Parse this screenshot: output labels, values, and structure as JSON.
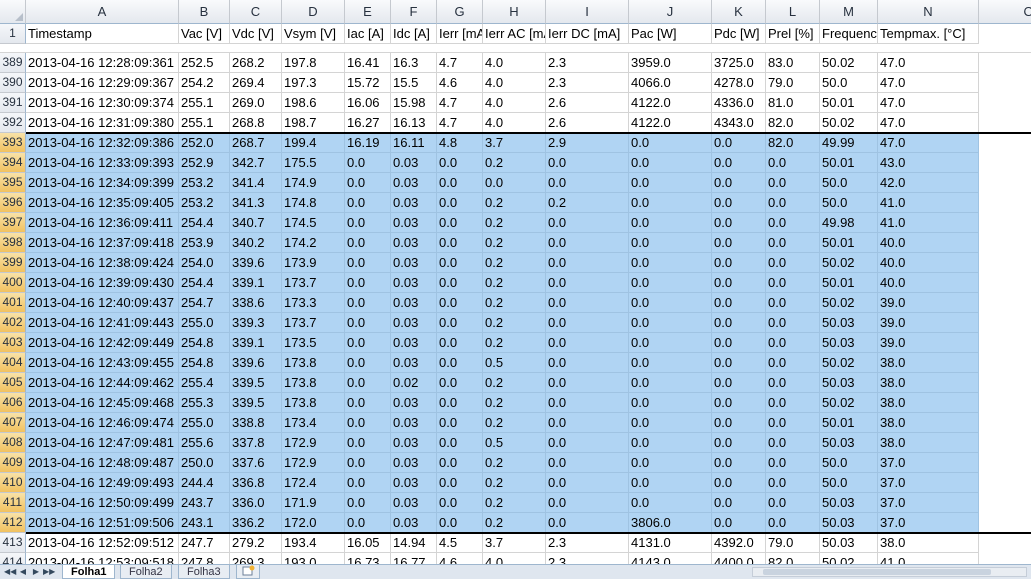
{
  "columns": [
    {
      "letter": "A",
      "w": 153
    },
    {
      "letter": "B",
      "w": 51
    },
    {
      "letter": "C",
      "w": 52
    },
    {
      "letter": "D",
      "w": 63
    },
    {
      "letter": "E",
      "w": 46
    },
    {
      "letter": "F",
      "w": 46
    },
    {
      "letter": "G",
      "w": 46
    },
    {
      "letter": "H",
      "w": 63
    },
    {
      "letter": "I",
      "w": 83
    },
    {
      "letter": "J",
      "w": 83
    },
    {
      "letter": "K",
      "w": 54
    },
    {
      "letter": "L",
      "w": 54
    },
    {
      "letter": "M",
      "w": 58
    },
    {
      "letter": "N",
      "w": 101
    },
    {
      "letter": "O",
      "w": 100
    }
  ],
  "header_row": {
    "num": "1",
    "cells": [
      "Timestamp",
      "Vac [V]",
      "Vdc [V]",
      "Vsym [V]",
      "Iac [A]",
      "Idc [A]",
      "Ierr [mA]",
      "Ierr AC [mA]",
      "Ierr DC [mA]",
      "Pac [W]",
      "Pdc [W]",
      "Prel [%]",
      "Frequency [Hz]",
      "Tempmax. [°C]"
    ]
  },
  "rows": [
    {
      "num": "389",
      "sel": false,
      "cells": [
        "2013-04-16 12:28:09:361",
        "252.5",
        "268.2",
        "197.8",
        "16.41",
        "16.3",
        "4.7",
        "4.0",
        "2.3",
        "3959.0",
        "3725.0",
        "83.0",
        "50.02",
        "47.0"
      ]
    },
    {
      "num": "390",
      "sel": false,
      "cells": [
        "2013-04-16 12:29:09:367",
        "254.2",
        "269.4",
        "197.3",
        "15.72",
        "15.5",
        "4.6",
        "4.0",
        "2.3",
        "4066.0",
        "4278.0",
        "79.0",
        "50.0",
        "47.0"
      ]
    },
    {
      "num": "391",
      "sel": false,
      "cells": [
        "2013-04-16 12:30:09:374",
        "255.1",
        "269.0",
        "198.6",
        "16.06",
        "15.98",
        "4.7",
        "4.0",
        "2.6",
        "4122.0",
        "4336.0",
        "81.0",
        "50.01",
        "47.0"
      ]
    },
    {
      "num": "392",
      "sel": false,
      "cells": [
        "2013-04-16 12:31:09:380",
        "255.1",
        "268.8",
        "198.7",
        "16.27",
        "16.13",
        "4.7",
        "4.0",
        "2.6",
        "4122.0",
        "4343.0",
        "82.0",
        "50.02",
        "47.0"
      ]
    },
    {
      "num": "393",
      "sel": true,
      "cells": [
        "2013-04-16 12:32:09:386",
        "252.0",
        "268.7",
        "199.4",
        "16.19",
        "16.11",
        "4.8",
        "3.7",
        "2.9",
        "0.0",
        "0.0",
        "82.0",
        "49.99",
        "47.0"
      ]
    },
    {
      "num": "394",
      "sel": true,
      "cells": [
        "2013-04-16 12:33:09:393",
        "252.9",
        "342.7",
        "175.5",
        "0.0",
        "0.03",
        "0.0",
        "0.2",
        "0.0",
        "0.0",
        "0.0",
        "0.0",
        "50.01",
        "43.0"
      ]
    },
    {
      "num": "395",
      "sel": true,
      "cells": [
        "2013-04-16 12:34:09:399",
        "253.2",
        "341.4",
        "174.9",
        "0.0",
        "0.03",
        "0.0",
        "0.0",
        "0.0",
        "0.0",
        "0.0",
        "0.0",
        "50.0",
        "42.0"
      ]
    },
    {
      "num": "396",
      "sel": true,
      "cells": [
        "2013-04-16 12:35:09:405",
        "253.2",
        "341.3",
        "174.8",
        "0.0",
        "0.03",
        "0.0",
        "0.2",
        "0.2",
        "0.0",
        "0.0",
        "0.0",
        "50.0",
        "41.0"
      ]
    },
    {
      "num": "397",
      "sel": true,
      "cells": [
        "2013-04-16 12:36:09:411",
        "254.4",
        "340.7",
        "174.5",
        "0.0",
        "0.03",
        "0.0",
        "0.2",
        "0.0",
        "0.0",
        "0.0",
        "0.0",
        "49.98",
        "41.0"
      ]
    },
    {
      "num": "398",
      "sel": true,
      "cells": [
        "2013-04-16 12:37:09:418",
        "253.9",
        "340.2",
        "174.2",
        "0.0",
        "0.03",
        "0.0",
        "0.2",
        "0.0",
        "0.0",
        "0.0",
        "0.0",
        "50.01",
        "40.0"
      ]
    },
    {
      "num": "399",
      "sel": true,
      "cells": [
        "2013-04-16 12:38:09:424",
        "254.0",
        "339.6",
        "173.9",
        "0.0",
        "0.03",
        "0.0",
        "0.2",
        "0.0",
        "0.0",
        "0.0",
        "0.0",
        "50.02",
        "40.0"
      ]
    },
    {
      "num": "400",
      "sel": true,
      "cells": [
        "2013-04-16 12:39:09:430",
        "254.4",
        "339.1",
        "173.7",
        "0.0",
        "0.03",
        "0.0",
        "0.2",
        "0.0",
        "0.0",
        "0.0",
        "0.0",
        "50.01",
        "40.0"
      ]
    },
    {
      "num": "401",
      "sel": true,
      "cells": [
        "2013-04-16 12:40:09:437",
        "254.7",
        "338.6",
        "173.3",
        "0.0",
        "0.03",
        "0.0",
        "0.2",
        "0.0",
        "0.0",
        "0.0",
        "0.0",
        "50.02",
        "39.0"
      ]
    },
    {
      "num": "402",
      "sel": true,
      "cells": [
        "2013-04-16 12:41:09:443",
        "255.0",
        "339.3",
        "173.7",
        "0.0",
        "0.03",
        "0.0",
        "0.2",
        "0.0",
        "0.0",
        "0.0",
        "0.0",
        "50.03",
        "39.0"
      ]
    },
    {
      "num": "403",
      "sel": true,
      "cells": [
        "2013-04-16 12:42:09:449",
        "254.8",
        "339.1",
        "173.5",
        "0.0",
        "0.03",
        "0.0",
        "0.2",
        "0.0",
        "0.0",
        "0.0",
        "0.0",
        "50.03",
        "39.0"
      ]
    },
    {
      "num": "404",
      "sel": true,
      "cells": [
        "2013-04-16 12:43:09:455",
        "254.8",
        "339.6",
        "173.8",
        "0.0",
        "0.03",
        "0.0",
        "0.5",
        "0.0",
        "0.0",
        "0.0",
        "0.0",
        "50.02",
        "38.0"
      ]
    },
    {
      "num": "405",
      "sel": true,
      "cells": [
        "2013-04-16 12:44:09:462",
        "255.4",
        "339.5",
        "173.8",
        "0.0",
        "0.02",
        "0.0",
        "0.2",
        "0.0",
        "0.0",
        "0.0",
        "0.0",
        "50.03",
        "38.0"
      ]
    },
    {
      "num": "406",
      "sel": true,
      "cells": [
        "2013-04-16 12:45:09:468",
        "255.3",
        "339.5",
        "173.8",
        "0.0",
        "0.03",
        "0.0",
        "0.2",
        "0.0",
        "0.0",
        "0.0",
        "0.0",
        "50.02",
        "38.0"
      ]
    },
    {
      "num": "407",
      "sel": true,
      "cells": [
        "2013-04-16 12:46:09:474",
        "255.0",
        "338.8",
        "173.4",
        "0.0",
        "0.03",
        "0.0",
        "0.2",
        "0.0",
        "0.0",
        "0.0",
        "0.0",
        "50.01",
        "38.0"
      ]
    },
    {
      "num": "408",
      "sel": true,
      "cells": [
        "2013-04-16 12:47:09:481",
        "255.6",
        "337.8",
        "172.9",
        "0.0",
        "0.03",
        "0.0",
        "0.5",
        "0.0",
        "0.0",
        "0.0",
        "0.0",
        "50.03",
        "38.0"
      ]
    },
    {
      "num": "409",
      "sel": true,
      "cells": [
        "2013-04-16 12:48:09:487",
        "250.0",
        "337.6",
        "172.9",
        "0.0",
        "0.03",
        "0.0",
        "0.2",
        "0.0",
        "0.0",
        "0.0",
        "0.0",
        "50.0",
        "37.0"
      ]
    },
    {
      "num": "410",
      "sel": true,
      "cells": [
        "2013-04-16 12:49:09:493",
        "244.4",
        "336.8",
        "172.4",
        "0.0",
        "0.03",
        "0.0",
        "0.2",
        "0.0",
        "0.0",
        "0.0",
        "0.0",
        "50.0",
        "37.0"
      ]
    },
    {
      "num": "411",
      "sel": true,
      "cells": [
        "2013-04-16 12:50:09:499",
        "243.7",
        "336.0",
        "171.9",
        "0.0",
        "0.03",
        "0.0",
        "0.2",
        "0.0",
        "0.0",
        "0.0",
        "0.0",
        "50.03",
        "37.0"
      ]
    },
    {
      "num": "412",
      "sel": true,
      "active": true,
      "cells": [
        "2013-04-16 12:51:09:506",
        "243.1",
        "336.2",
        "172.0",
        "0.0",
        "0.03",
        "0.0",
        "0.2",
        "0.0",
        "3806.0",
        "0.0",
        "0.0",
        "50.03",
        "37.0"
      ]
    },
    {
      "num": "413",
      "sel": false,
      "cells": [
        "2013-04-16 12:52:09:512",
        "247.7",
        "279.2",
        "193.4",
        "16.05",
        "14.94",
        "4.5",
        "3.7",
        "2.3",
        "4131.0",
        "4392.0",
        "79.0",
        "50.03",
        "38.0"
      ]
    },
    {
      "num": "414",
      "sel": false,
      "cells": [
        "2013-04-16 12:53:09:518",
        "247.8",
        "269.3",
        "193.0",
        "16.73",
        "16.77",
        "4.6",
        "4.0",
        "2.3",
        "4143.0",
        "4400.0",
        "82.0",
        "50.02",
        "41.0"
      ]
    }
  ],
  "tabs": {
    "sheet1": "Folha1",
    "sheet2": "Folha2",
    "sheet3": "Folha3",
    "nav_first": "◀◀",
    "nav_prev": "◀",
    "nav_next": "▶",
    "nav_last": "▶▶",
    "new_sheet_icon": "new-sheet-icon"
  }
}
